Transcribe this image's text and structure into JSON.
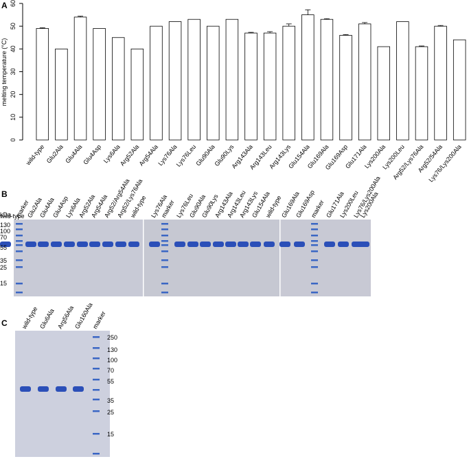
{
  "chart_data": {
    "type": "bar",
    "panel": "A",
    "ylabel": "melting temperature (°C)",
    "categories": [
      "wild-type",
      "Glu2Ala",
      "Glu4Ala",
      "Glu4Asp",
      "Lys6Ala",
      "Arg52Ala",
      "Arg54Ala",
      "Lys76Ala",
      "Lys76Leu",
      "Glu90Ala",
      "Glu90Lys",
      "Arg143Ala",
      "Arg143Leu",
      "Arg143Lys",
      "Glu154Ala",
      "Glu169Ala",
      "Glu169Asp",
      "Glu171Ala",
      "Lys200Ala",
      "Lys200Leu",
      "Arg52/Lys76Ala",
      "Arg52/54Ala",
      "Lys76/Lys200Ala"
    ],
    "values": [
      49,
      40,
      54,
      49,
      45,
      40,
      50,
      52,
      53,
      50,
      53,
      47,
      47,
      50,
      55,
      53,
      46,
      51,
      41,
      52,
      41,
      50,
      44
    ],
    "errors": [
      0.3,
      null,
      0.4,
      null,
      null,
      null,
      null,
      null,
      null,
      null,
      null,
      0.3,
      0.6,
      1,
      2.2,
      0.3,
      0.3,
      0.6,
      null,
      null,
      0.3,
      0.3,
      null
    ],
    "color": "#ffffff",
    "ylim": [
      0,
      60
    ],
    "yticks": [
      0,
      10,
      20,
      30,
      40,
      50,
      60
    ],
    "grid": false
  },
  "gels": [
    {
      "panel": "B",
      "lanes": [
        "marker",
        "Glu2Ala",
        "Glu4Ala",
        "Glu4Asp",
        "Lys6Ala",
        "Arg52Ala",
        "Arg54Ala",
        "Arg52/Arg54Ala",
        "Arg52/Lys76Ala",
        "wild-type",
        "Lys76Ala",
        "marker",
        "Lys76Leu",
        "Glu90Ala",
        "Glu90Lys",
        "Arg143Ala",
        "Arg143Leu",
        "Arg143Lys",
        "Glu154Ala",
        "wild-type",
        "Glu169Ala",
        "Glu169Asp",
        "marker",
        "Glu171Ala",
        "Lys200Leu",
        "Lys76/Lys200Ala",
        "Lys200Ala",
        "wild-type"
      ],
      "unit": "kDa",
      "markers": [
        "130",
        "100",
        "70",
        "55",
        "35",
        "25",
        "15"
      ]
    },
    {
      "panel": "C",
      "lanes": [
        "wild-type",
        "Glu6Ala",
        "Arg56Ala",
        "Glu160Ala",
        "marker"
      ],
      "markers": [
        "250",
        "130",
        "100",
        "70",
        "55",
        "35",
        "25",
        "15"
      ]
    }
  ]
}
